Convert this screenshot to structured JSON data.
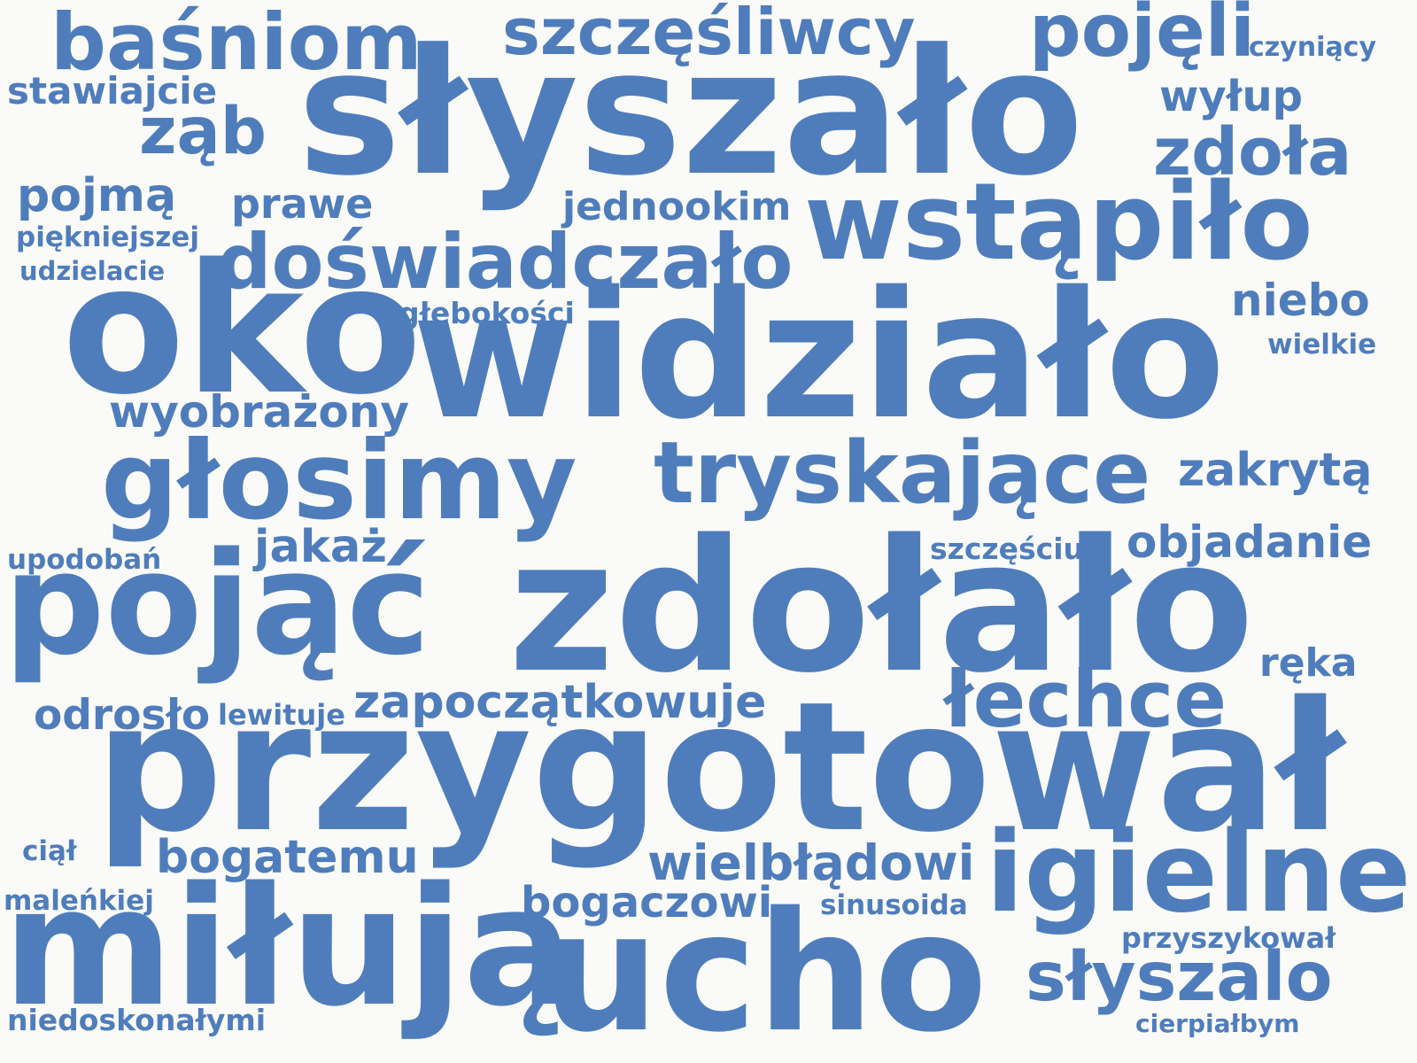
{
  "word_cloud": {
    "color": "#4f7dbc",
    "background": "#fafaf8",
    "words": [
      "baśniom",
      "szczęśliwcy",
      "pojęli",
      "czyniący",
      "stawiajcie",
      "wyłup",
      "słyszało",
      "ząb",
      "zdoła",
      "pojmą",
      "prawe",
      "jednookim",
      "wstąpiło",
      "piękniejszej",
      "doświadczało",
      "udzielacie",
      "niebo",
      "oko",
      "głębokości",
      "widziało",
      "wielkie",
      "wyobrażony",
      "tryskające",
      "zakrytą",
      "głosimy",
      "jakaż",
      "szczęściu",
      "objadanie",
      "upodobań",
      "pojąć",
      "zdołało",
      "ręka",
      "odrosło",
      "lewituje",
      "zapoczątkowuje",
      "łechce",
      "przygotował",
      "ciął",
      "bogatemu",
      "wielbłądowi",
      "igielne",
      "maleńkiej",
      "bogaczowi",
      "sinusoida",
      "miłują",
      "ucho",
      "przyszykował",
      "słyszalo",
      "niedoskonałymi",
      "cierpiałbym"
    ]
  }
}
